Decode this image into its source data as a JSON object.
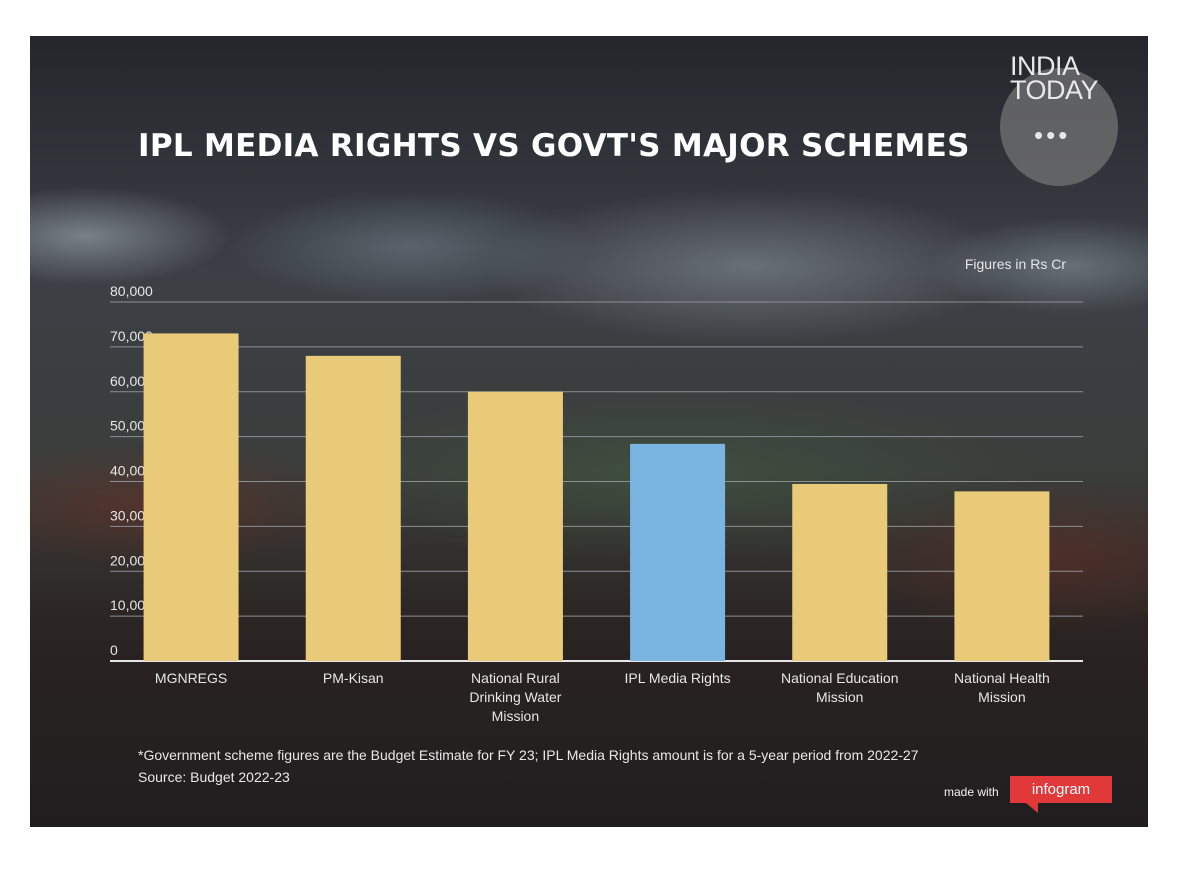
{
  "brand": {
    "line1": "INDIA",
    "line2": "TODAY",
    "dots": "•••"
  },
  "units_label": "Figures in Rs Cr",
  "footnote": "*Government scheme figures are the Budget Estimate for FY 23; IPL Media Rights amount is for a 5-year period from 2022-27",
  "source": "Source: Budget 2022-23",
  "made_with": "made with",
  "infogram": "infogram",
  "colors": {
    "scheme": "#e8ca78",
    "ipl": "#7ab4e0",
    "grid": "#8c8f94",
    "axis": "#e6e6e6"
  },
  "chart_data": {
    "type": "bar",
    "title": "IPL MEDIA RIGHTS VS GOVT'S MAJOR SCHEMES",
    "categories": [
      [
        "MGNREGS"
      ],
      [
        "PM-Kisan"
      ],
      [
        "National Rural",
        "Drinking Water",
        "Mission"
      ],
      [
        "IPL Media Rights"
      ],
      [
        "National Education",
        "Mission"
      ],
      [
        "National Health",
        "Mission"
      ]
    ],
    "values": [
      73000,
      68000,
      60000,
      48390,
      39450,
      37800
    ],
    "highlight_index": 3,
    "yticks": [
      "0",
      "10,000",
      "20,000",
      "30,000",
      "40,000",
      "50,000",
      "60,000",
      "70,000",
      "80,000"
    ],
    "ylim": [
      0,
      80000
    ],
    "grid": true,
    "legend": false
  }
}
